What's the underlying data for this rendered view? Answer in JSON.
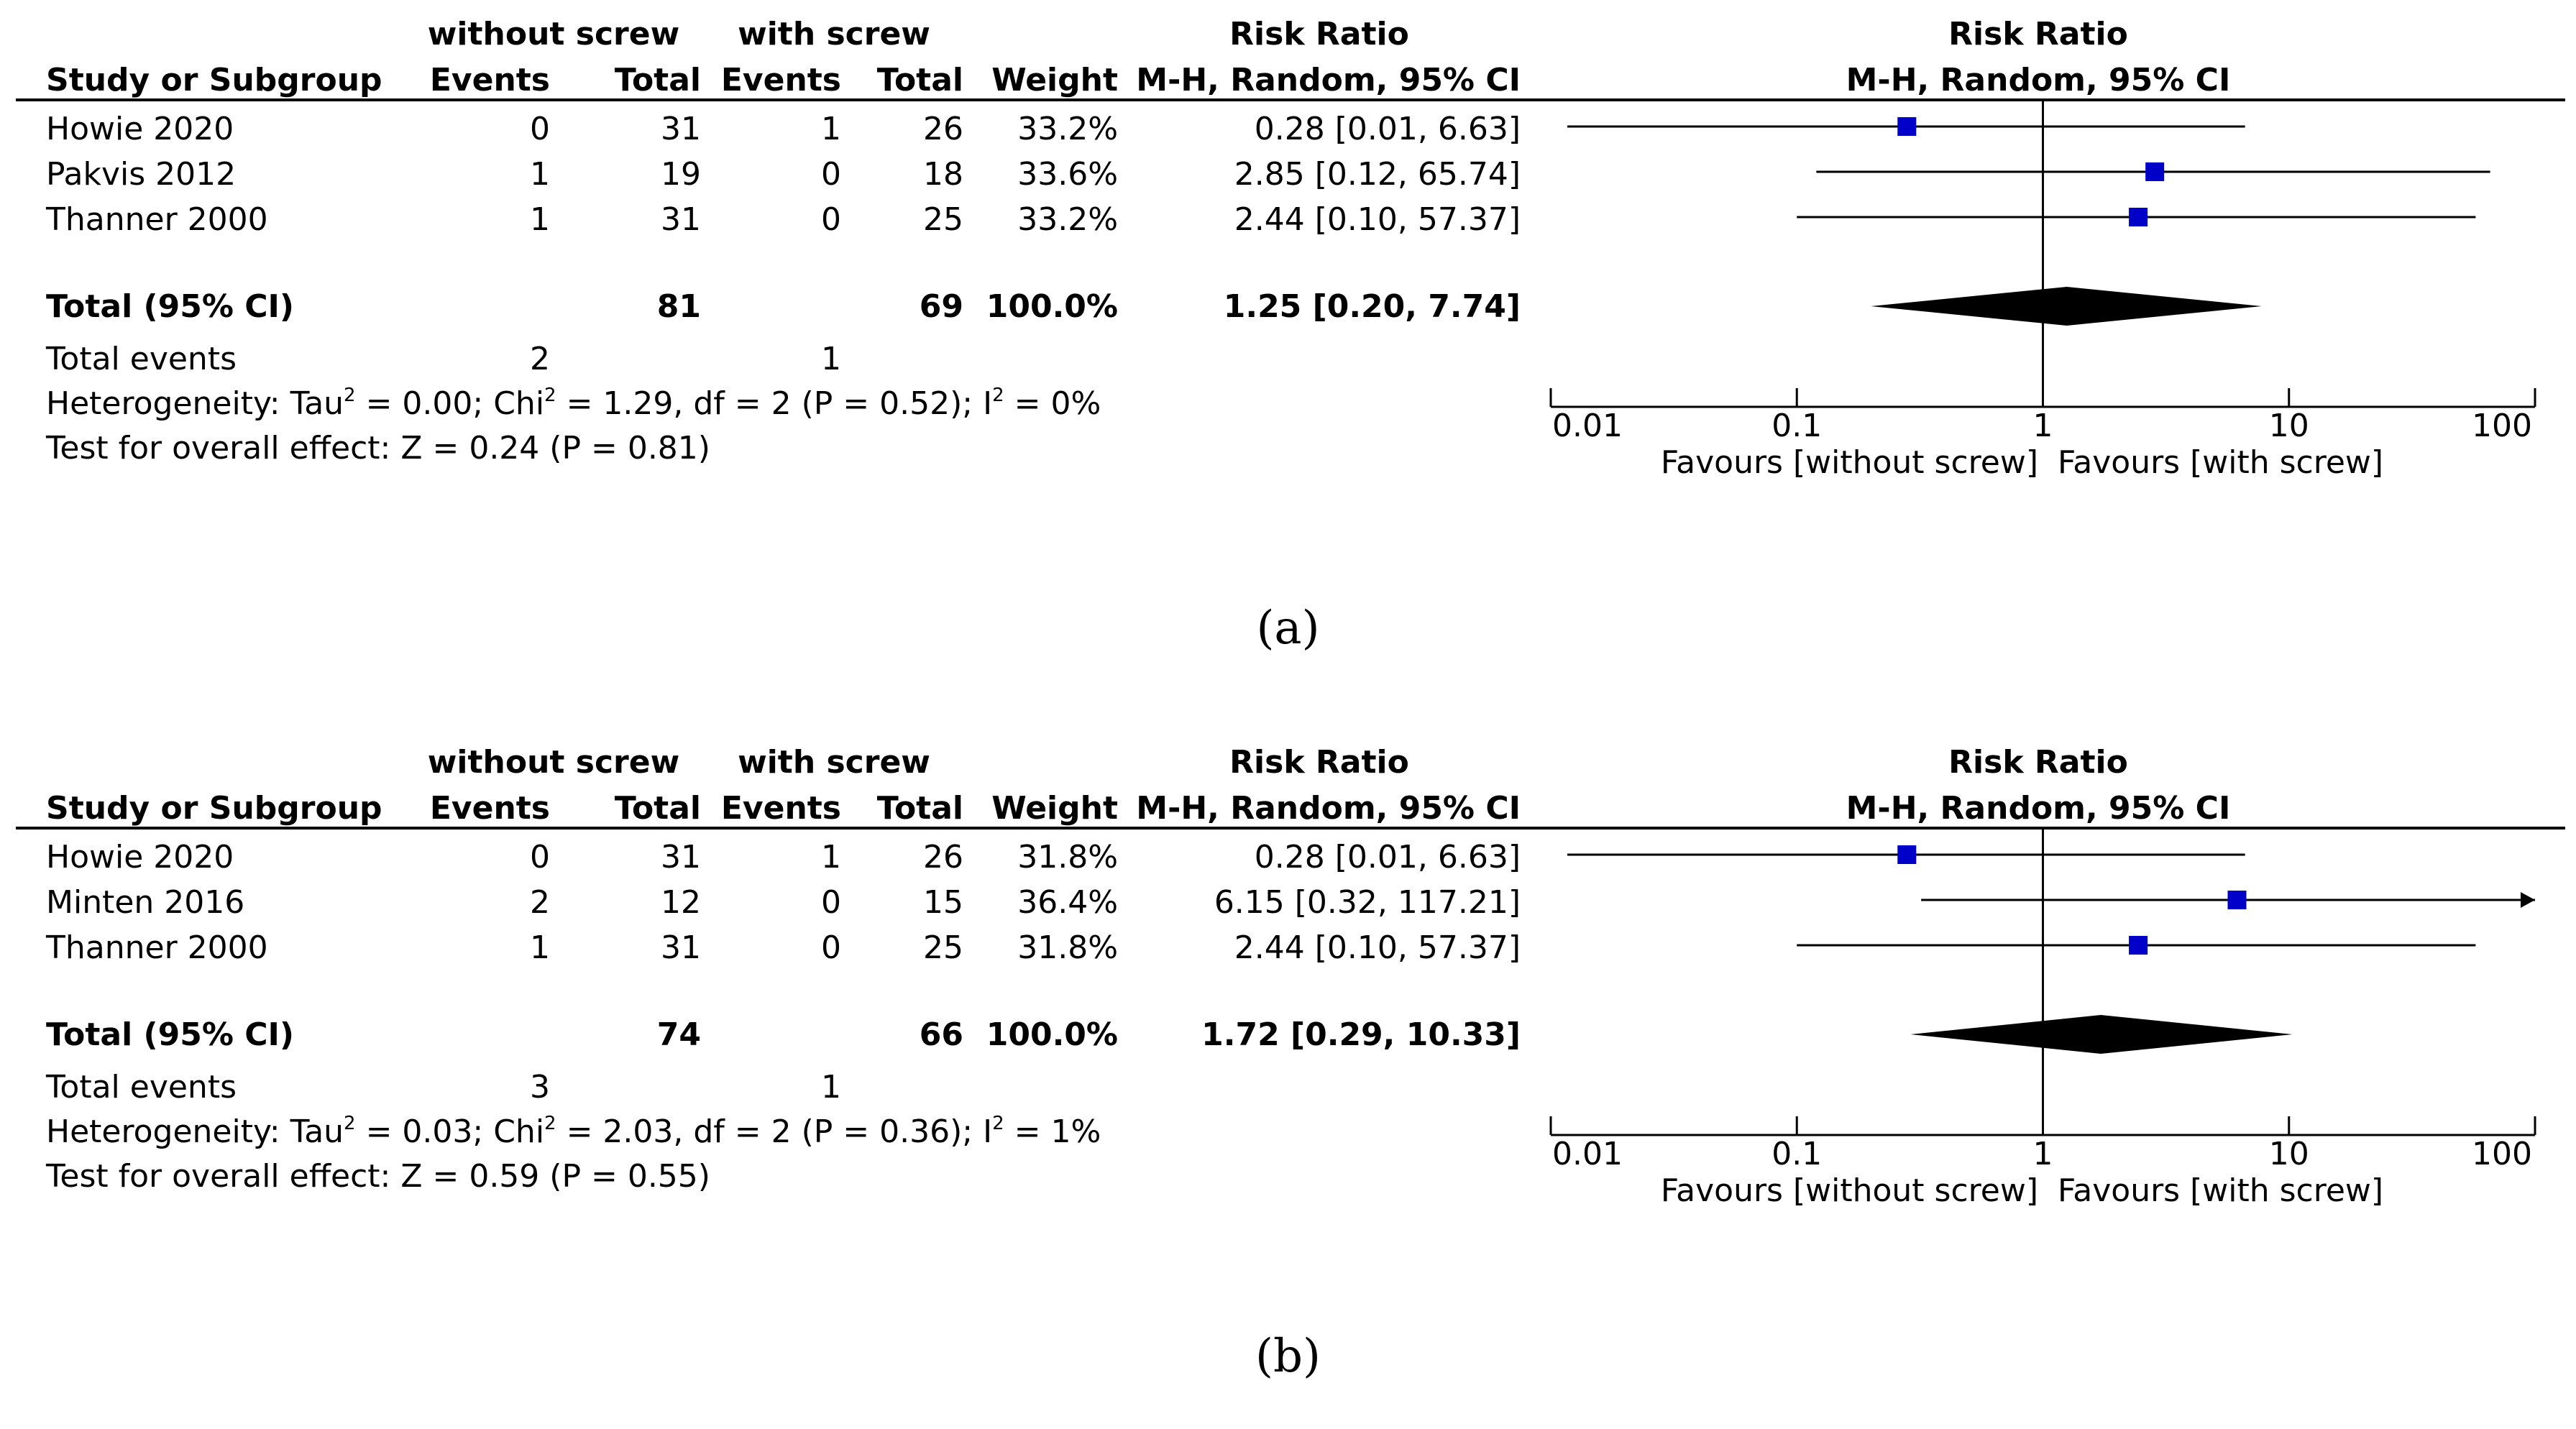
{
  "chart_data": [
    {
      "type": "forest",
      "panel_label": "(a)",
      "headers": {
        "group1": "without screw",
        "group2": "with screw",
        "study": "Study or Subgroup",
        "events1": "Events",
        "total1": "Total",
        "events2": "Events",
        "total2": "Total",
        "weight": "Weight",
        "rr_title": "Risk Ratio",
        "rr_method": "M-H, Random, 95% CI",
        "plot_title": "Risk Ratio",
        "plot_method": "M-H, Random, 95% CI"
      },
      "studies": [
        {
          "name": "Howie 2020",
          "events1": "0",
          "total1": "31",
          "events2": "1",
          "total2": "26",
          "weight": "33.2%",
          "ci_text": "0.28 [0.01, 6.63]",
          "rr": 0.28,
          "lower": 0.01,
          "upper": 6.63
        },
        {
          "name": "Pakvis 2012",
          "events1": "1",
          "total1": "19",
          "events2": "0",
          "total2": "18",
          "weight": "33.6%",
          "ci_text": "2.85 [0.12, 65.74]",
          "rr": 2.85,
          "lower": 0.12,
          "upper": 65.74
        },
        {
          "name": "Thanner 2000",
          "events1": "1",
          "total1": "31",
          "events2": "0",
          "total2": "25",
          "weight": "33.2%",
          "ci_text": "2.44 [0.10, 57.37]",
          "rr": 2.44,
          "lower": 0.1,
          "upper": 57.37
        }
      ],
      "total": {
        "label": "Total (95% CI)",
        "total1": "81",
        "total2": "69",
        "weight": "100.0%",
        "ci_text": "1.25 [0.20, 7.74]",
        "rr": 1.25,
        "lower": 0.2,
        "upper": 7.74
      },
      "total_events": {
        "label": "Total events",
        "events1": "2",
        "events2": "1"
      },
      "heterogeneity": {
        "prefix": "Heterogeneity: Tau",
        "mid1": " = 0.00; Chi",
        "mid2": " = 1.29, df = 2 (P = 0.52); I",
        "suffix": " = 0%",
        "sup": "2"
      },
      "overall_effect": "Test for overall effect: Z = 0.24 (P = 0.81)",
      "axis": {
        "scale": "log",
        "ticks": [
          0.01,
          0.1,
          1,
          10,
          100
        ],
        "tick_labels": [
          "0.01",
          "0.1",
          "1",
          "10",
          "100"
        ],
        "favours_left": "Favours [without screw]",
        "favours_right": "Favours [with screw]"
      },
      "marker_color": "#0000c8"
    },
    {
      "type": "forest",
      "panel_label": "(b)",
      "headers": {
        "group1": "without screw",
        "group2": "with screw",
        "study": "Study or Subgroup",
        "events1": "Events",
        "total1": "Total",
        "events2": "Events",
        "total2": "Total",
        "weight": "Weight",
        "rr_title": "Risk Ratio",
        "rr_method": "M-H, Random, 95% CI",
        "plot_title": "Risk Ratio",
        "plot_method": "M-H, Random, 95% CI"
      },
      "studies": [
        {
          "name": "Howie 2020",
          "events1": "0",
          "total1": "31",
          "events2": "1",
          "total2": "26",
          "weight": "31.8%",
          "ci_text": "0.28 [0.01, 6.63]",
          "rr": 0.28,
          "lower": 0.01,
          "upper": 6.63
        },
        {
          "name": "Minten 2016",
          "events1": "2",
          "total1": "12",
          "events2": "0",
          "total2": "15",
          "weight": "36.4%",
          "ci_text": "6.15 [0.32, 117.21]",
          "rr": 6.15,
          "lower": 0.32,
          "upper": 117.21
        },
        {
          "name": "Thanner 2000",
          "events1": "1",
          "total1": "31",
          "events2": "0",
          "total2": "25",
          "weight": "31.8%",
          "ci_text": "2.44 [0.10, 57.37]",
          "rr": 2.44,
          "lower": 0.1,
          "upper": 57.37
        }
      ],
      "total": {
        "label": "Total (95% CI)",
        "total1": "74",
        "total2": "66",
        "weight": "100.0%",
        "ci_text": "1.72 [0.29, 10.33]",
        "rr": 1.72,
        "lower": 0.29,
        "upper": 10.33
      },
      "total_events": {
        "label": "Total events",
        "events1": "3",
        "events2": "1"
      },
      "heterogeneity": {
        "prefix": "Heterogeneity: Tau",
        "mid1": " = 0.03; Chi",
        "mid2": " = 2.03, df = 2 (P = 0.36); I",
        "suffix": " = 1%",
        "sup": "2"
      },
      "overall_effect": "Test for overall effect: Z = 0.59 (P = 0.55)",
      "axis": {
        "scale": "log",
        "ticks": [
          0.01,
          0.1,
          1,
          10,
          100
        ],
        "tick_labels": [
          "0.01",
          "0.1",
          "1",
          "10",
          "100"
        ],
        "favours_left": "Favours [without screw]",
        "favours_right": "Favours [with screw]"
      },
      "marker_color": "#0000c8"
    }
  ]
}
